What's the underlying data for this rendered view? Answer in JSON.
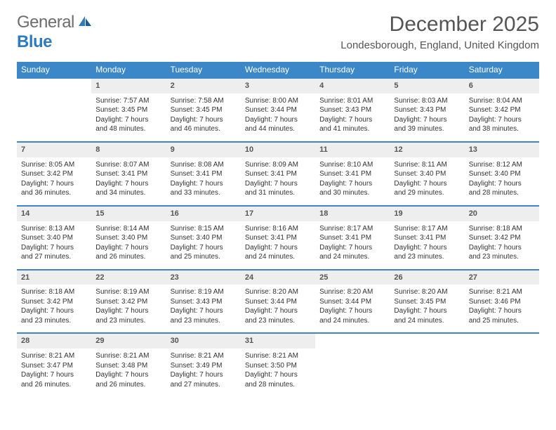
{
  "logo": {
    "general": "General",
    "blue": "Blue"
  },
  "title": "December 2025",
  "location": "Londesborough, England, United Kingdom",
  "colors": {
    "header_bg": "#3b87c8",
    "header_text": "#ffffff",
    "daynum_bg": "#eeeeee",
    "row_border": "#3b87c8",
    "body_text": "#333333",
    "title_text": "#555555",
    "logo_gray": "#6d6d6d",
    "logo_blue": "#2f7bbf",
    "page_bg": "#ffffff"
  },
  "typography": {
    "title_fontsize": 30,
    "location_fontsize": 15,
    "dayheader_fontsize": 12,
    "daynum_fontsize": 11,
    "cell_fontsize": 10,
    "font_family": "Arial"
  },
  "layout": {
    "columns": 7,
    "rows": 5,
    "first_weekday_offset": 1
  },
  "day_headers": [
    "Sunday",
    "Monday",
    "Tuesday",
    "Wednesday",
    "Thursday",
    "Friday",
    "Saturday"
  ],
  "days": [
    {
      "n": 1,
      "sunrise": "7:57 AM",
      "sunset": "3:45 PM",
      "daylight": "7 hours and 48 minutes."
    },
    {
      "n": 2,
      "sunrise": "7:58 AM",
      "sunset": "3:45 PM",
      "daylight": "7 hours and 46 minutes."
    },
    {
      "n": 3,
      "sunrise": "8:00 AM",
      "sunset": "3:44 PM",
      "daylight": "7 hours and 44 minutes."
    },
    {
      "n": 4,
      "sunrise": "8:01 AM",
      "sunset": "3:43 PM",
      "daylight": "7 hours and 41 minutes."
    },
    {
      "n": 5,
      "sunrise": "8:03 AM",
      "sunset": "3:43 PM",
      "daylight": "7 hours and 39 minutes."
    },
    {
      "n": 6,
      "sunrise": "8:04 AM",
      "sunset": "3:42 PM",
      "daylight": "7 hours and 38 minutes."
    },
    {
      "n": 7,
      "sunrise": "8:05 AM",
      "sunset": "3:42 PM",
      "daylight": "7 hours and 36 minutes."
    },
    {
      "n": 8,
      "sunrise": "8:07 AM",
      "sunset": "3:41 PM",
      "daylight": "7 hours and 34 minutes."
    },
    {
      "n": 9,
      "sunrise": "8:08 AM",
      "sunset": "3:41 PM",
      "daylight": "7 hours and 33 minutes."
    },
    {
      "n": 10,
      "sunrise": "8:09 AM",
      "sunset": "3:41 PM",
      "daylight": "7 hours and 31 minutes."
    },
    {
      "n": 11,
      "sunrise": "8:10 AM",
      "sunset": "3:41 PM",
      "daylight": "7 hours and 30 minutes."
    },
    {
      "n": 12,
      "sunrise": "8:11 AM",
      "sunset": "3:40 PM",
      "daylight": "7 hours and 29 minutes."
    },
    {
      "n": 13,
      "sunrise": "8:12 AM",
      "sunset": "3:40 PM",
      "daylight": "7 hours and 28 minutes."
    },
    {
      "n": 14,
      "sunrise": "8:13 AM",
      "sunset": "3:40 PM",
      "daylight": "7 hours and 27 minutes."
    },
    {
      "n": 15,
      "sunrise": "8:14 AM",
      "sunset": "3:40 PM",
      "daylight": "7 hours and 26 minutes."
    },
    {
      "n": 16,
      "sunrise": "8:15 AM",
      "sunset": "3:40 PM",
      "daylight": "7 hours and 25 minutes."
    },
    {
      "n": 17,
      "sunrise": "8:16 AM",
      "sunset": "3:41 PM",
      "daylight": "7 hours and 24 minutes."
    },
    {
      "n": 18,
      "sunrise": "8:17 AM",
      "sunset": "3:41 PM",
      "daylight": "7 hours and 24 minutes."
    },
    {
      "n": 19,
      "sunrise": "8:17 AM",
      "sunset": "3:41 PM",
      "daylight": "7 hours and 23 minutes."
    },
    {
      "n": 20,
      "sunrise": "8:18 AM",
      "sunset": "3:42 PM",
      "daylight": "7 hours and 23 minutes."
    },
    {
      "n": 21,
      "sunrise": "8:18 AM",
      "sunset": "3:42 PM",
      "daylight": "7 hours and 23 minutes."
    },
    {
      "n": 22,
      "sunrise": "8:19 AM",
      "sunset": "3:42 PM",
      "daylight": "7 hours and 23 minutes."
    },
    {
      "n": 23,
      "sunrise": "8:19 AM",
      "sunset": "3:43 PM",
      "daylight": "7 hours and 23 minutes."
    },
    {
      "n": 24,
      "sunrise": "8:20 AM",
      "sunset": "3:44 PM",
      "daylight": "7 hours and 23 minutes."
    },
    {
      "n": 25,
      "sunrise": "8:20 AM",
      "sunset": "3:44 PM",
      "daylight": "7 hours and 24 minutes."
    },
    {
      "n": 26,
      "sunrise": "8:20 AM",
      "sunset": "3:45 PM",
      "daylight": "7 hours and 24 minutes."
    },
    {
      "n": 27,
      "sunrise": "8:21 AM",
      "sunset": "3:46 PM",
      "daylight": "7 hours and 25 minutes."
    },
    {
      "n": 28,
      "sunrise": "8:21 AM",
      "sunset": "3:47 PM",
      "daylight": "7 hours and 26 minutes."
    },
    {
      "n": 29,
      "sunrise": "8:21 AM",
      "sunset": "3:48 PM",
      "daylight": "7 hours and 26 minutes."
    },
    {
      "n": 30,
      "sunrise": "8:21 AM",
      "sunset": "3:49 PM",
      "daylight": "7 hours and 27 minutes."
    },
    {
      "n": 31,
      "sunrise": "8:21 AM",
      "sunset": "3:50 PM",
      "daylight": "7 hours and 28 minutes."
    }
  ],
  "labels": {
    "sunrise": "Sunrise:",
    "sunset": "Sunset:",
    "daylight": "Daylight:"
  }
}
